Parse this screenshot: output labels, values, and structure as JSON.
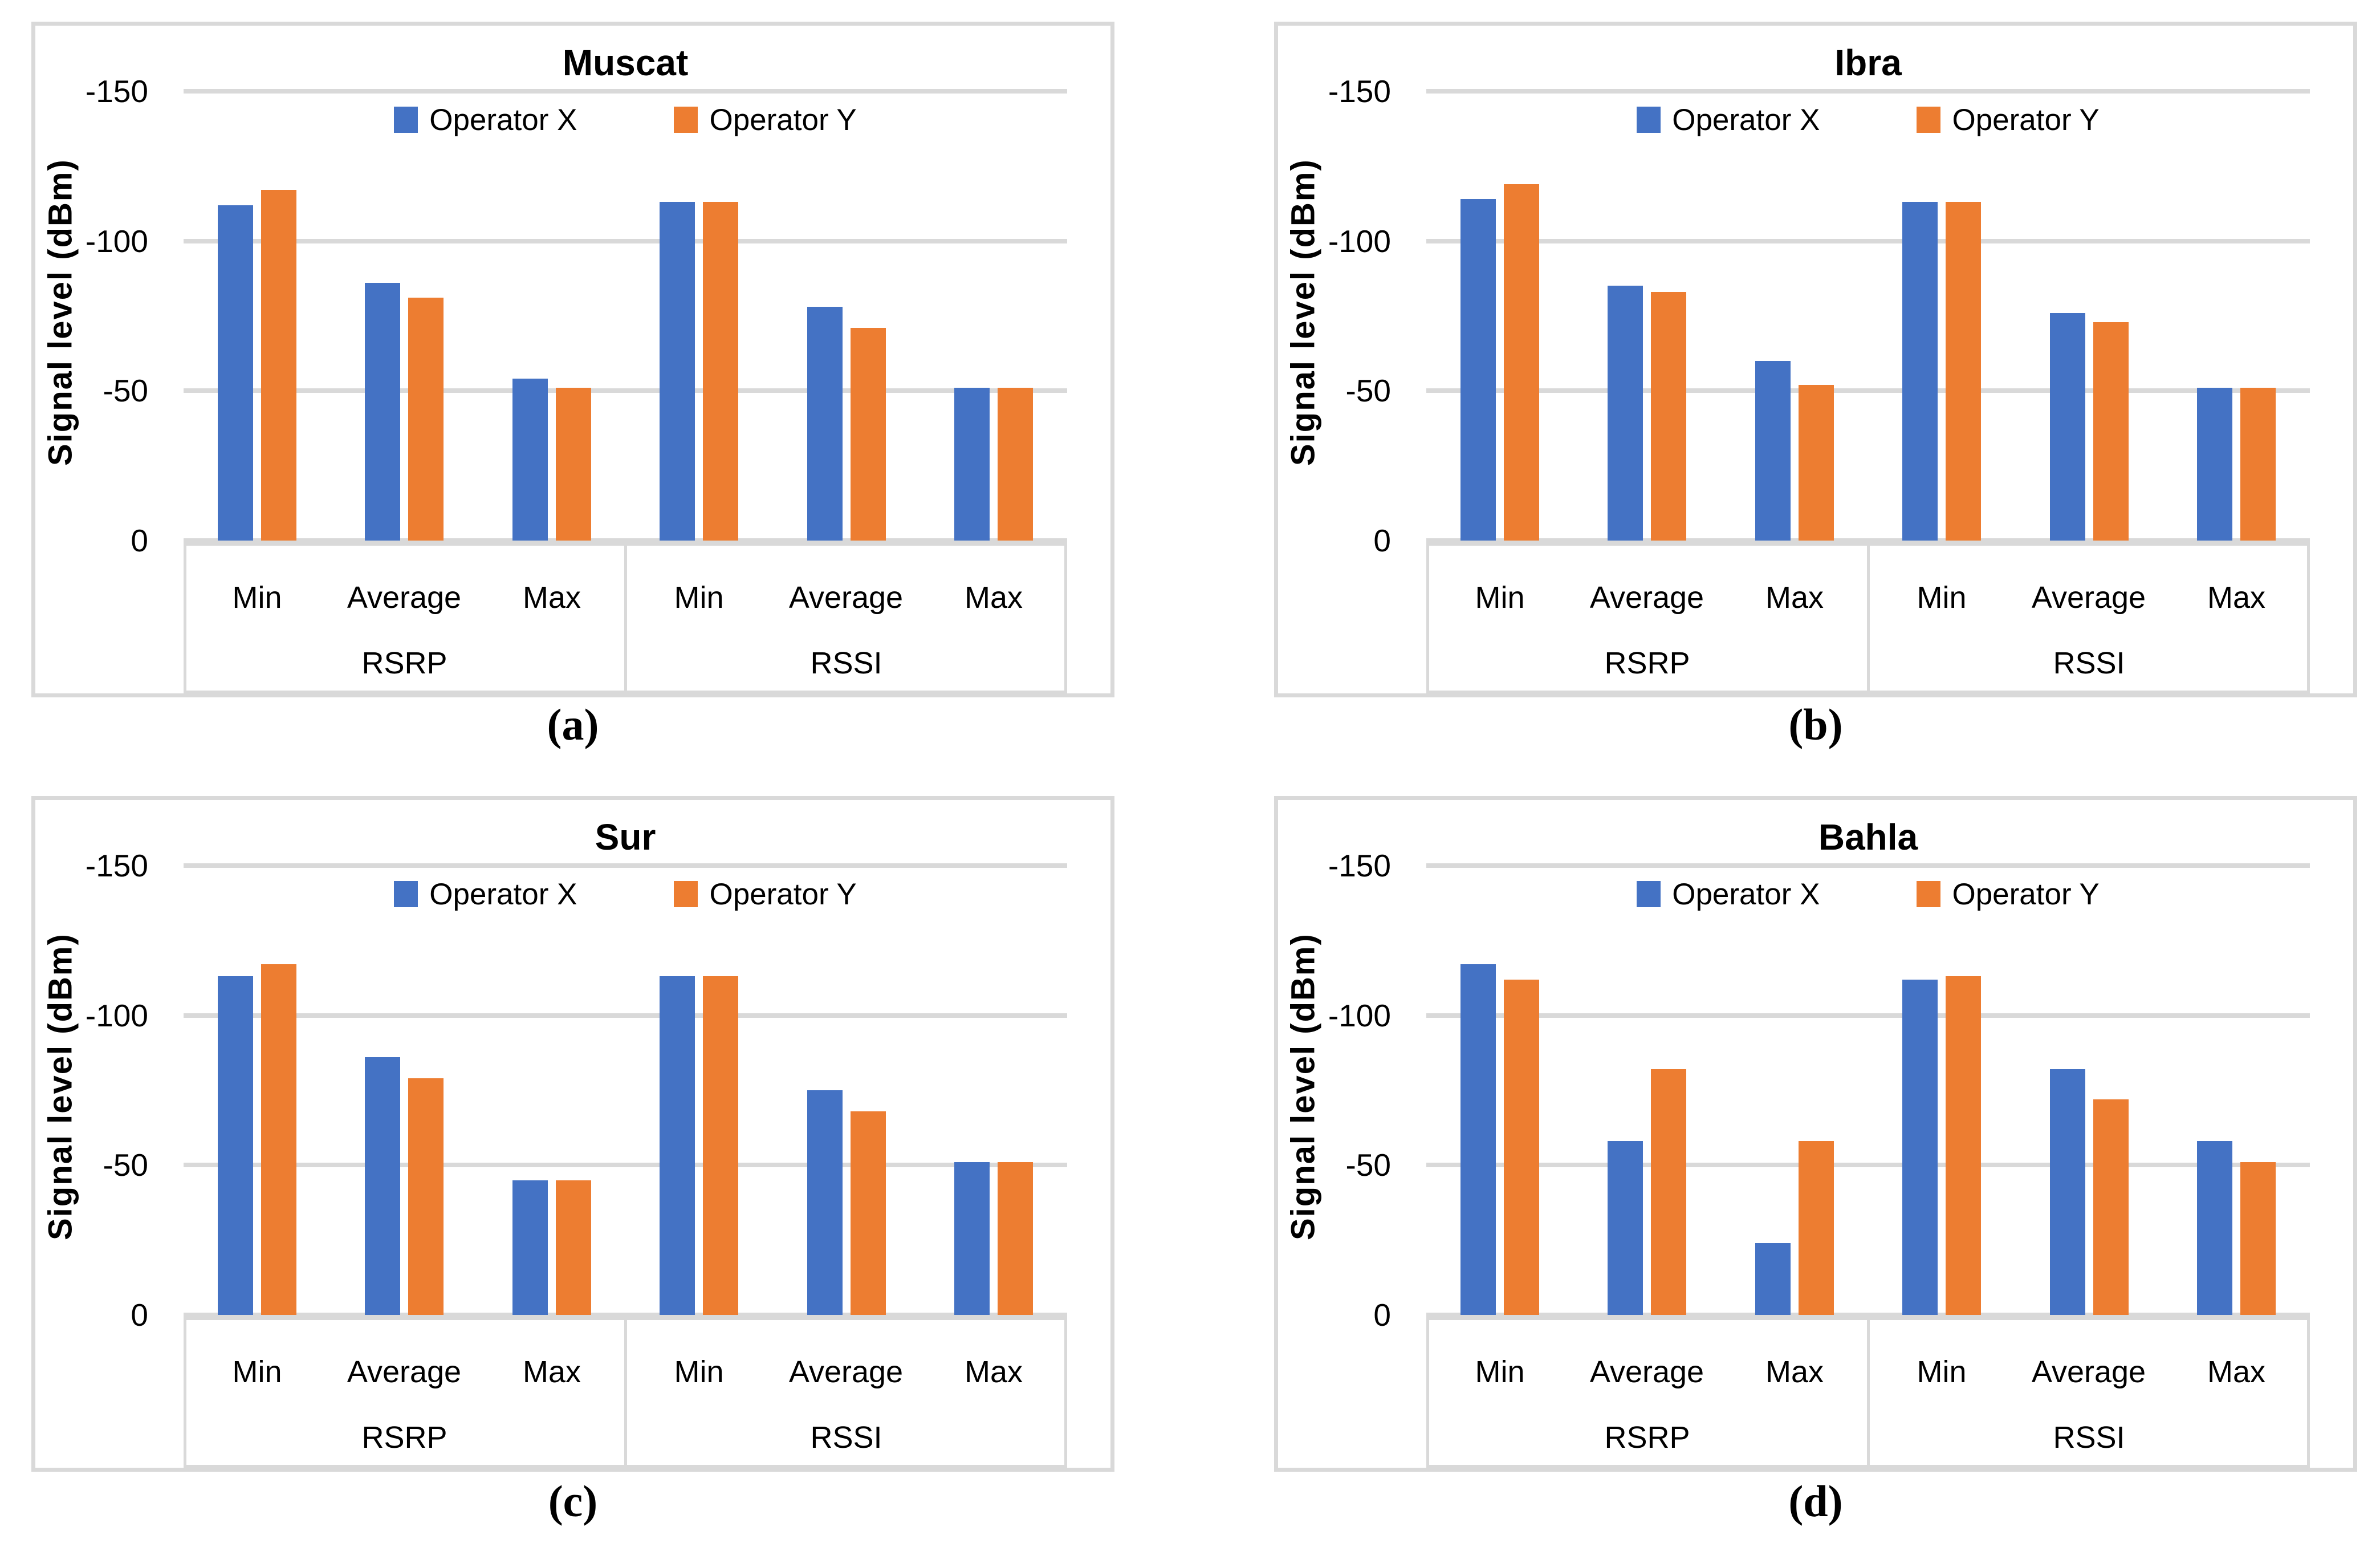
{
  "figure": {
    "ylabel": "Signal level (dBm)",
    "legend": [
      "Operator X",
      "Operator Y"
    ],
    "colors": {
      "operator_x": "#4472C4",
      "operator_y": "#ED7D31",
      "gridline": "#D9D9D9",
      "panel_border": "#D9D9D9",
      "text": "#000000",
      "background": "#FFFFFF"
    }
  },
  "chart_data": [
    {
      "type": "bar",
      "title": "Muscat",
      "caption": "(a)",
      "ylabel": "Signal level (dBm)",
      "ylim": [
        0,
        -150
      ],
      "ytick_labels": [
        "-150",
        "-100",
        "-50",
        "0"
      ],
      "grid": true,
      "legend_position": "top-center",
      "group_labels": [
        "RSRP",
        "RSSI"
      ],
      "categories": [
        "Min",
        "Average",
        "Max",
        "Min",
        "Average",
        "Max"
      ],
      "series": [
        {
          "name": "Operator X",
          "color": "#4472C4",
          "values": [
            -112,
            -86,
            -54,
            -113,
            -78,
            -51
          ]
        },
        {
          "name": "Operator Y",
          "color": "#ED7D31",
          "values": [
            -117,
            -81,
            -51,
            -113,
            -71,
            -51
          ]
        }
      ]
    },
    {
      "type": "bar",
      "title": "Ibra",
      "caption": "(b)",
      "ylabel": "Signal level (dBm)",
      "ylim": [
        0,
        -150
      ],
      "ytick_labels": [
        "-150",
        "-100",
        "-50",
        "0"
      ],
      "grid": true,
      "legend_position": "top-center",
      "group_labels": [
        "RSRP",
        "RSSI"
      ],
      "categories": [
        "Min",
        "Average",
        "Max",
        "Min",
        "Average",
        "Max"
      ],
      "series": [
        {
          "name": "Operator X",
          "color": "#4472C4",
          "values": [
            -114,
            -85,
            -60,
            -113,
            -76,
            -51
          ]
        },
        {
          "name": "Operator Y",
          "color": "#ED7D31",
          "values": [
            -119,
            -83,
            -52,
            -113,
            -73,
            -51
          ]
        }
      ]
    },
    {
      "type": "bar",
      "title": "Sur",
      "caption": "(c)",
      "ylabel": "Signal level (dBm)",
      "ylim": [
        0,
        -150
      ],
      "ytick_labels": [
        "-150",
        "-100",
        "-50",
        "0"
      ],
      "grid": true,
      "legend_position": "top-center",
      "group_labels": [
        "RSRP",
        "RSSI"
      ],
      "categories": [
        "Min",
        "Average",
        "Max",
        "Min",
        "Average",
        "Max"
      ],
      "series": [
        {
          "name": "Operator X",
          "color": "#4472C4",
          "values": [
            -113,
            -86,
            -45,
            -113,
            -75,
            -51
          ]
        },
        {
          "name": "Operator Y",
          "color": "#ED7D31",
          "values": [
            -117,
            -79,
            -45,
            -113,
            -68,
            -51
          ]
        }
      ]
    },
    {
      "type": "bar",
      "title": "Bahla",
      "caption": "(d)",
      "ylabel": "Signal level (dBm)",
      "ylim": [
        0,
        -150
      ],
      "ytick_labels": [
        "-150",
        "-100",
        "-50",
        "0"
      ],
      "grid": true,
      "legend_position": "top-center",
      "group_labels": [
        "RSRP",
        "RSSI"
      ],
      "categories": [
        "Min",
        "Average",
        "Max",
        "Min",
        "Average",
        "Max"
      ],
      "series": [
        {
          "name": "Operator X",
          "color": "#4472C4",
          "values": [
            -117,
            -58,
            -24,
            -112,
            -82,
            -58
          ]
        },
        {
          "name": "Operator Y",
          "color": "#ED7D31",
          "values": [
            -112,
            -82,
            -58,
            -113,
            -72,
            -51
          ]
        }
      ]
    }
  ]
}
